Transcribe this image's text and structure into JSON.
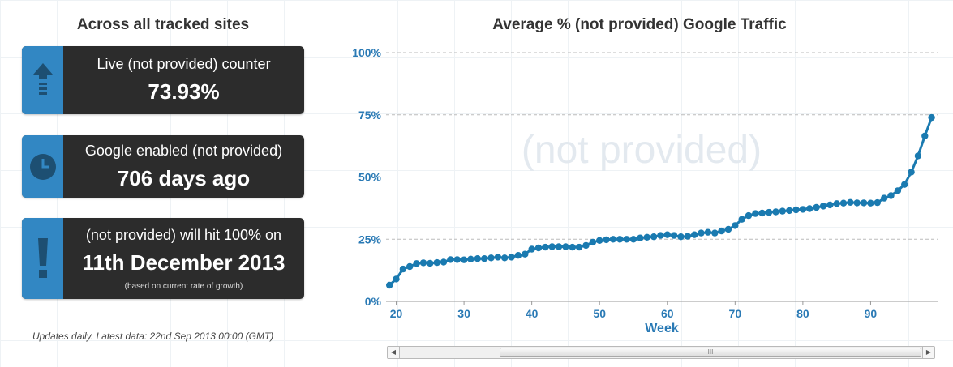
{
  "left": {
    "title": "Across all tracked sites",
    "cards": [
      {
        "line1": "Live (not provided) counter",
        "value": "73.93%",
        "icon": "arrow-up-icon"
      },
      {
        "line1": "Google enabled (not provided)",
        "value": "706 days ago",
        "icon": "clock-icon"
      },
      {
        "line1_pre": "(not provided) will hit ",
        "line1_link": "100%",
        "line1_post": " on",
        "value": "11th December 2013",
        "note": "(based on current rate of growth)",
        "icon": "exclamation-icon"
      }
    ],
    "footnote": "Updates daily. Latest data: 22nd Sep 2013 00:00 (GMT)"
  },
  "colors": {
    "accent": "#3287c3",
    "card_bg": "#2c2c2c",
    "line": "#1a7ab0",
    "axis_text": "#2a7ab5"
  },
  "chart_data": {
    "type": "line",
    "title": "Average % (not provided) Google Traffic",
    "watermark": "(not provided)",
    "xlabel": "Week",
    "ylabel": "",
    "xlim": [
      18.5,
      100
    ],
    "ylim": [
      0,
      100
    ],
    "x_ticks": [
      20,
      30,
      40,
      50,
      60,
      70,
      80,
      90
    ],
    "y_ticks": [
      0,
      25,
      50,
      75,
      100
    ],
    "y_tick_labels": [
      "0%",
      "25%",
      "50%",
      "75%",
      "100%"
    ],
    "grid": "horizontal dashed",
    "series": [
      {
        "x": [
          19,
          20,
          21,
          22,
          23,
          24,
          25,
          26,
          27,
          28,
          29,
          30,
          31,
          32,
          33,
          34,
          35,
          36,
          37,
          38,
          39,
          40,
          41,
          42,
          43,
          44,
          45,
          46,
          47,
          48,
          49,
          50,
          51,
          52,
          53,
          54,
          55,
          56,
          57,
          58,
          59,
          60,
          61,
          62,
          63,
          64,
          65,
          66,
          67,
          68,
          69,
          70,
          71,
          72,
          73,
          74,
          75,
          76,
          77,
          78,
          79,
          80,
          81,
          82,
          83,
          84,
          85,
          86,
          87,
          88,
          89,
          90,
          91,
          92,
          93,
          94,
          95,
          96,
          97,
          98,
          99
        ],
        "values": [
          6.5,
          9,
          13,
          14,
          15.2,
          15.5,
          15.3,
          15.6,
          15.8,
          16.8,
          16.8,
          16.7,
          17,
          17.2,
          17.2,
          17.5,
          17.8,
          17.5,
          17.8,
          18.5,
          19,
          21,
          21.5,
          21.8,
          22,
          22,
          22,
          21.8,
          21.8,
          22.5,
          23.8,
          24.5,
          24.8,
          25,
          25,
          25,
          25,
          25.5,
          25.8,
          26,
          26.5,
          26.8,
          26.5,
          26,
          26.2,
          26.8,
          27.5,
          27.8,
          27.5,
          28.3,
          29,
          30.5,
          33,
          34.5,
          35.3,
          35.5,
          35.8,
          36,
          36.3,
          36.5,
          36.8,
          37,
          37.3,
          37.8,
          38.3,
          38.8,
          39.3,
          39.5,
          39.8,
          39.6,
          39.6,
          39.5,
          39.7,
          41.5,
          42.5,
          44.5,
          47,
          52,
          58.5,
          66.5,
          73.9
        ]
      }
    ]
  },
  "scrollbar": {
    "thumb_label": "III"
  }
}
